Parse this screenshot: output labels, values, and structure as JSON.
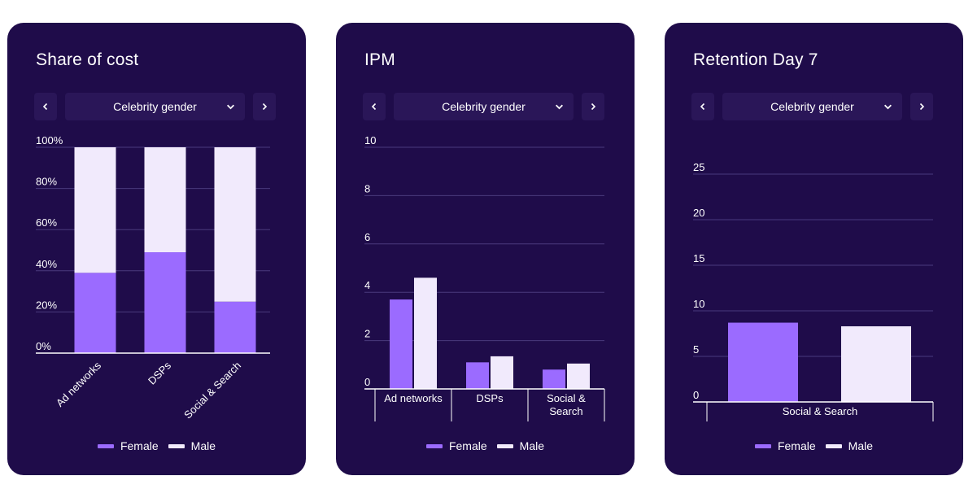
{
  "colors": {
    "card": "#1f0c4a",
    "control": "#2a1658",
    "female": "#9b6bff",
    "male": "#f1eafc",
    "grid": "#4a3a7d",
    "axis": "#ffffff"
  },
  "icons": {
    "prev": "chevron-left-icon",
    "next": "chevron-right-icon",
    "dropdown": "chevron-down-icon"
  },
  "cards": [
    {
      "title": "Share of cost",
      "selector_value": "Celebrity gender",
      "legend": [
        "Female",
        "Male"
      ]
    },
    {
      "title": "IPM",
      "selector_value": "Celebrity gender",
      "legend": [
        "Female",
        "Male"
      ]
    },
    {
      "title": "Retention Day 7",
      "selector_value": "Celebrity gender",
      "legend": [
        "Female",
        "Male"
      ]
    }
  ],
  "chart_data": [
    {
      "type": "bar",
      "stacked": true,
      "title": "Share of cost",
      "categories": [
        "Ad networks",
        "DSPs",
        "Social & Search"
      ],
      "series": [
        {
          "name": "Female",
          "values": [
            39,
            49,
            25
          ]
        },
        {
          "name": "Male",
          "values": [
            61,
            51,
            75
          ]
        }
      ],
      "ylim": [
        0,
        100
      ],
      "yticks": [
        "0%",
        "20%",
        "40%",
        "60%",
        "80%",
        "100%"
      ],
      "grid": true,
      "legend": "bottom"
    },
    {
      "type": "bar",
      "stacked": false,
      "title": "IPM",
      "categories": [
        "Ad networks",
        "DSPs",
        "Social & Search"
      ],
      "series": [
        {
          "name": "Female",
          "values": [
            3.7,
            1.1,
            0.8
          ]
        },
        {
          "name": "Male",
          "values": [
            4.6,
            1.35,
            1.05
          ]
        }
      ],
      "ylim": [
        0,
        10
      ],
      "yticks": [
        "0",
        "2",
        "4",
        "6",
        "8",
        "10"
      ],
      "grid": true,
      "legend": "bottom"
    },
    {
      "type": "bar",
      "stacked": false,
      "title": "Retention Day 7",
      "categories": [
        "Social & Search"
      ],
      "series": [
        {
          "name": "Female",
          "values": [
            8.7
          ]
        },
        {
          "name": "Male",
          "values": [
            8.3
          ]
        }
      ],
      "ylim": [
        0,
        25
      ],
      "yticks": [
        "0",
        "5",
        "10",
        "15",
        "20",
        "25"
      ],
      "grid": true,
      "legend": "bottom"
    }
  ]
}
